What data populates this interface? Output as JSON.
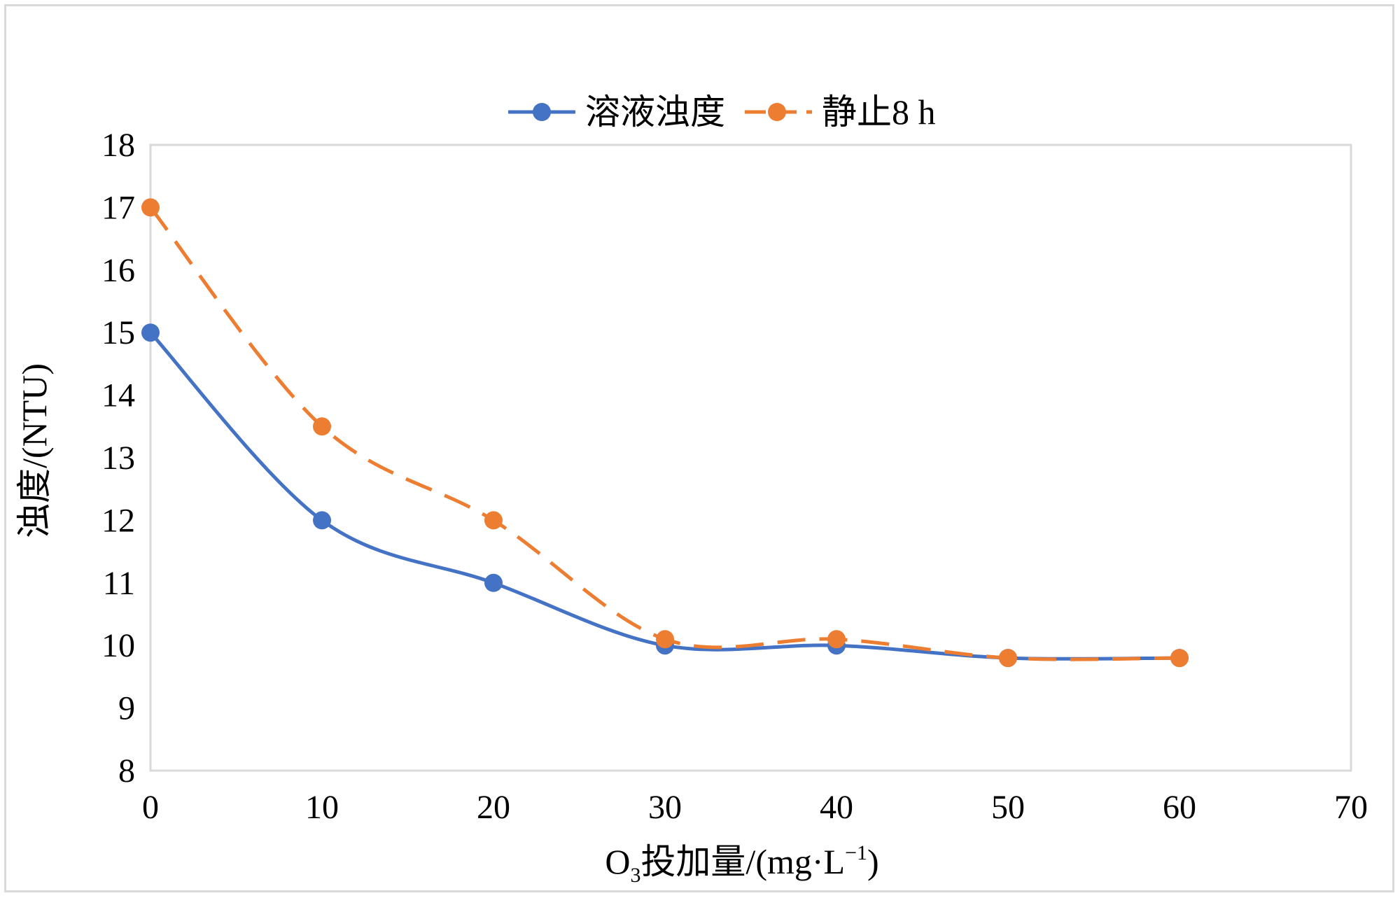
{
  "chart_data": {
    "type": "line",
    "title": "",
    "xlabel_prefix": "O",
    "xlabel_sub": "3",
    "xlabel_main": "投加量/(mg·L",
    "xlabel_sup": "−1",
    "xlabel_close": ")",
    "ylabel": "浊度/(NTU)",
    "xlim": [
      0,
      70
    ],
    "ylim": [
      8,
      18
    ],
    "xticks": [
      "0",
      "10",
      "20",
      "30",
      "40",
      "50",
      "60",
      "70"
    ],
    "yticks": [
      "8",
      "9",
      "10",
      "11",
      "12",
      "13",
      "14",
      "15",
      "16",
      "17",
      "18"
    ],
    "x": [
      0,
      10,
      20,
      30,
      40,
      50,
      60
    ],
    "series": [
      {
        "name": "溶液浊度",
        "values": [
          15,
          12,
          11,
          10,
          10,
          9.8,
          9.8
        ],
        "color": "#4472c4",
        "style": "solid"
      },
      {
        "name": "静止8 h",
        "values": [
          17,
          13.5,
          12,
          10.1,
          10.1,
          9.8,
          9.8
        ],
        "color": "#ed7d31",
        "style": "dashed"
      }
    ],
    "legend_position": "top-center",
    "grid": false
  }
}
